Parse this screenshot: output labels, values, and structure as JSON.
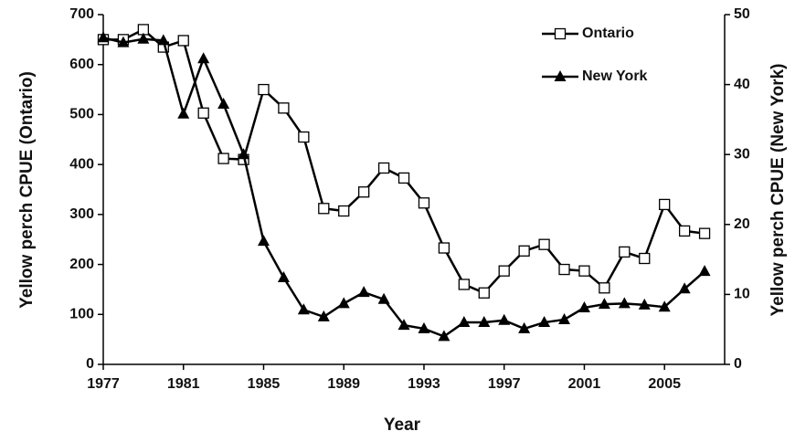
{
  "chart_data": {
    "type": "line",
    "x_label": "Year",
    "y_label": "Yellow perch CPUE (Ontario)",
    "y2_label": "Yellow perch CPUE (New York)",
    "x": [
      1977,
      1978,
      1979,
      1980,
      1981,
      1982,
      1983,
      1984,
      1985,
      1986,
      1987,
      1988,
      1989,
      1990,
      1991,
      1992,
      1993,
      1994,
      1995,
      1996,
      1997,
      1998,
      1999,
      2000,
      2001,
      2002,
      2003,
      2004,
      2005,
      2006,
      2007
    ],
    "series": [
      {
        "name": "Ontario",
        "color": "#000000",
        "marker": "square",
        "values": [
          650,
          650,
          670,
          635,
          648,
          503,
          412,
          410,
          550,
          513,
          455,
          312,
          307,
          345,
          393,
          373,
          323,
          233,
          160,
          143,
          187,
          227,
          240,
          190,
          187,
          153,
          225,
          212,
          320,
          267,
          262
        ]
      },
      {
        "name": "New York",
        "color": "#000000",
        "marker": "triangle",
        "axis": "y2",
        "values": [
          46.7,
          46,
          46.5,
          46.3,
          35.8,
          43.7,
          37.2,
          30,
          17.6,
          12.4,
          7.8,
          6.8,
          8.7,
          10.3,
          9.3,
          5.6,
          5.1,
          4,
          6,
          6,
          6.3,
          5.1,
          6,
          6.4,
          8.1,
          8.6,
          8.7,
          8.5,
          8.2,
          10.8,
          13.3
        ]
      }
    ],
    "xlim": [
      1977,
      2008
    ],
    "xticks": [
      1977,
      1981,
      1985,
      1989,
      1993,
      1997,
      2001,
      2005
    ],
    "ylim": [
      0,
      700
    ],
    "yticks": [
      0,
      100,
      200,
      300,
      400,
      500,
      600,
      700
    ],
    "y2lim": [
      0,
      50
    ],
    "y2ticks": [
      0,
      10,
      20,
      30,
      40,
      50
    ],
    "legend": "top-right"
  }
}
